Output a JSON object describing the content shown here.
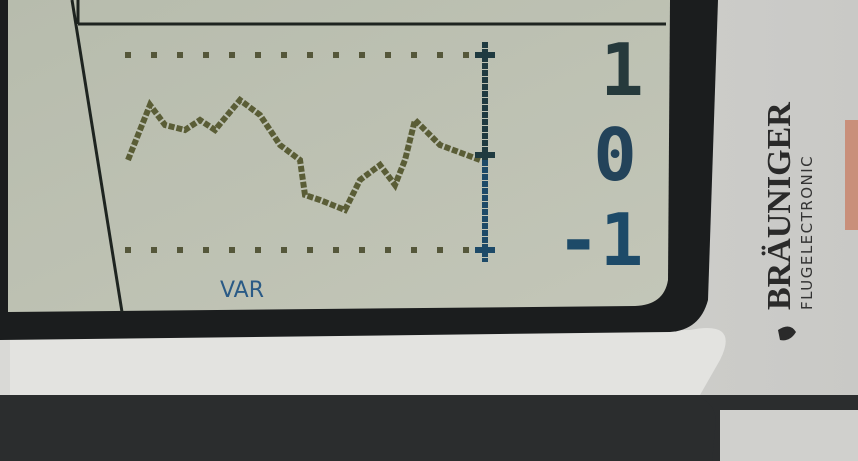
{
  "screen": {
    "label": "VAR",
    "scale": [
      "1",
      "0",
      "-1"
    ]
  },
  "brand": {
    "name": "BRÄUNIGER",
    "subtitle": "FLUGELECTRONIC"
  }
}
